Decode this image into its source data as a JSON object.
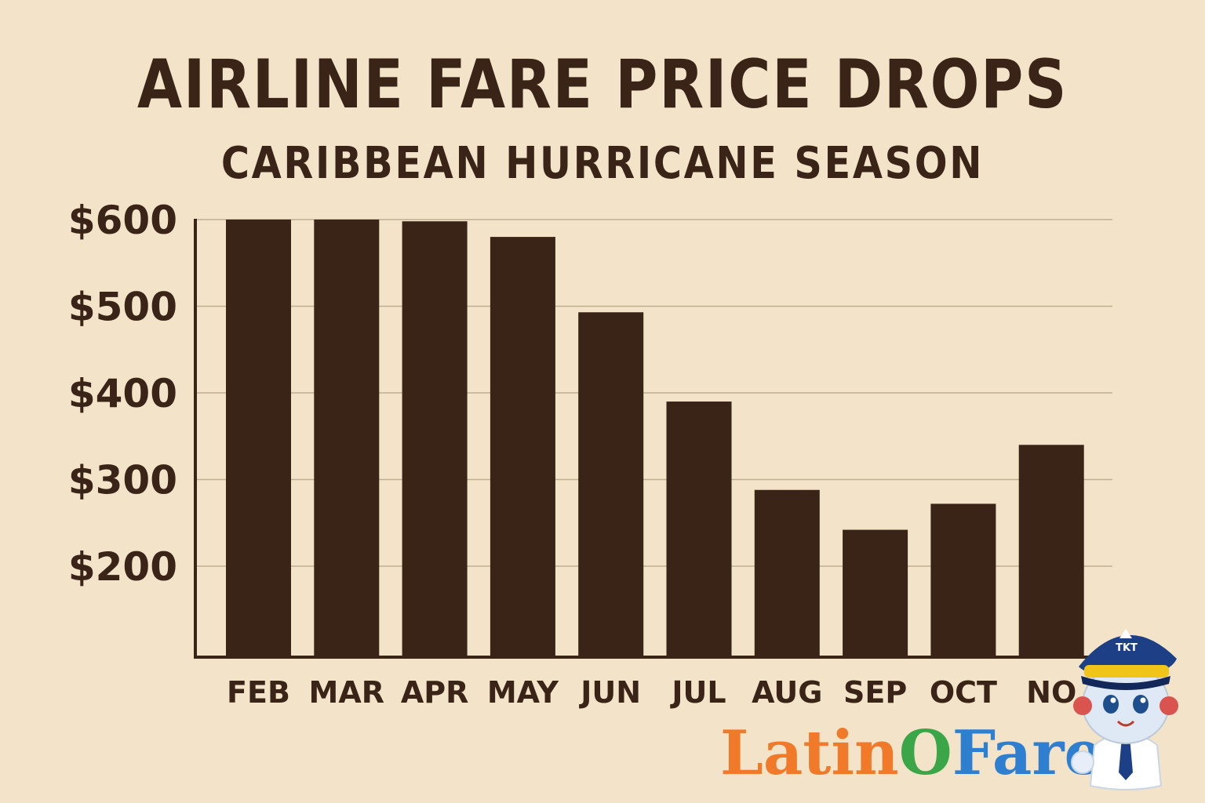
{
  "title": "AIRLINE FARE PRICE DROPS",
  "subtitle": "CARIBBEAN HURRICANE SEASON",
  "colors": {
    "background": "#f3e3c8",
    "bar": "#3a2417",
    "text": "#3a2417",
    "grid": "#bfae8f"
  },
  "chart_data": {
    "type": "bar",
    "categories": [
      "FEB",
      "MAR",
      "APR",
      "MAY",
      "JUN",
      "JUL",
      "AUG",
      "SEP",
      "OCT",
      "NO"
    ],
    "values": [
      600,
      600,
      598,
      580,
      493,
      390,
      288,
      242,
      272,
      340
    ],
    "y_ticks": [
      "$600",
      "$500",
      "$400",
      "$300",
      "$200"
    ],
    "y_tick_values": [
      600,
      500,
      400,
      300,
      200
    ],
    "ylim": [
      100,
      600
    ],
    "grid": true
  },
  "logo": {
    "part1": "Latin",
    "part2": "O",
    "part3": "Fare"
  },
  "mascot": {
    "cap_text": "TKT",
    "icon": "pilot-mascot-icon"
  }
}
